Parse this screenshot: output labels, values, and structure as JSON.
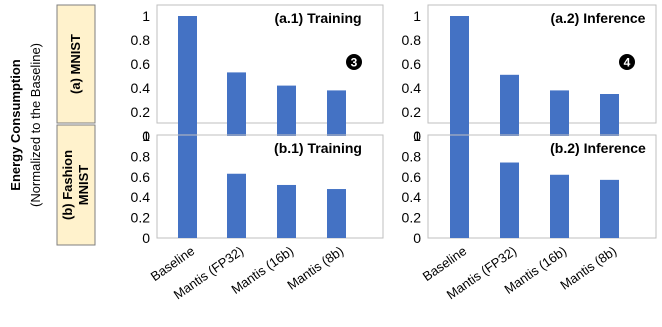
{
  "y_title": "Energy Consumption",
  "y_subtitle": "(Normalized to the Baseline)",
  "rows": [
    {
      "label_lines": [
        "(a) MNIST"
      ]
    },
    {
      "label_lines": [
        "(b) Fashion",
        "MNIST"
      ]
    }
  ],
  "colors": {
    "bar": "#4472C4",
    "row_label_bg": "#FFF2CC",
    "row_label_border": "#7F7F7F",
    "panel_border": "#BFBFBF",
    "marker": "#000000"
  },
  "chart_data": [
    {
      "type": "bar",
      "title": "(a.1) Training",
      "categories": [
        "Baseline",
        "Mantis (FP32)",
        "Mantis (16b)",
        "Mantis (8b)"
      ],
      "values": [
        1.0,
        0.53,
        0.42,
        0.38
      ],
      "ylim": [
        0,
        1
      ],
      "yticks": [
        "0",
        "0.2",
        "0.4",
        "0.6",
        "0.8",
        "1"
      ],
      "annotation": "3"
    },
    {
      "type": "bar",
      "title": "(a.2) Inference",
      "categories": [
        "Baseline",
        "Mantis (FP32)",
        "Mantis (16b)",
        "Mantis (8b)"
      ],
      "values": [
        1.0,
        0.51,
        0.38,
        0.35
      ],
      "ylim": [
        0,
        1
      ],
      "yticks": [
        "0",
        "0.2",
        "0.4",
        "0.6",
        "0.8",
        "1"
      ],
      "annotation": "4"
    },
    {
      "type": "bar",
      "title": "(b.1) Training",
      "categories": [
        "Baseline",
        "Mantis (FP32)",
        "Mantis (16b)",
        "Mantis (8b)"
      ],
      "values": [
        1.0,
        0.63,
        0.52,
        0.48
      ],
      "ylim": [
        0,
        1
      ],
      "yticks": [
        "0",
        "0.2",
        "0.4",
        "0.6",
        "0.8",
        "1"
      ],
      "annotation": ""
    },
    {
      "type": "bar",
      "title": "(b.2) Inference",
      "categories": [
        "Baseline",
        "Mantis (FP32)",
        "Mantis (16b)",
        "Mantis (8b)"
      ],
      "values": [
        1.0,
        0.74,
        0.62,
        0.57
      ],
      "ylim": [
        0,
        1
      ],
      "yticks": [
        "0",
        "0.2",
        "0.4",
        "0.6",
        "0.8",
        "1"
      ],
      "annotation": ""
    }
  ]
}
